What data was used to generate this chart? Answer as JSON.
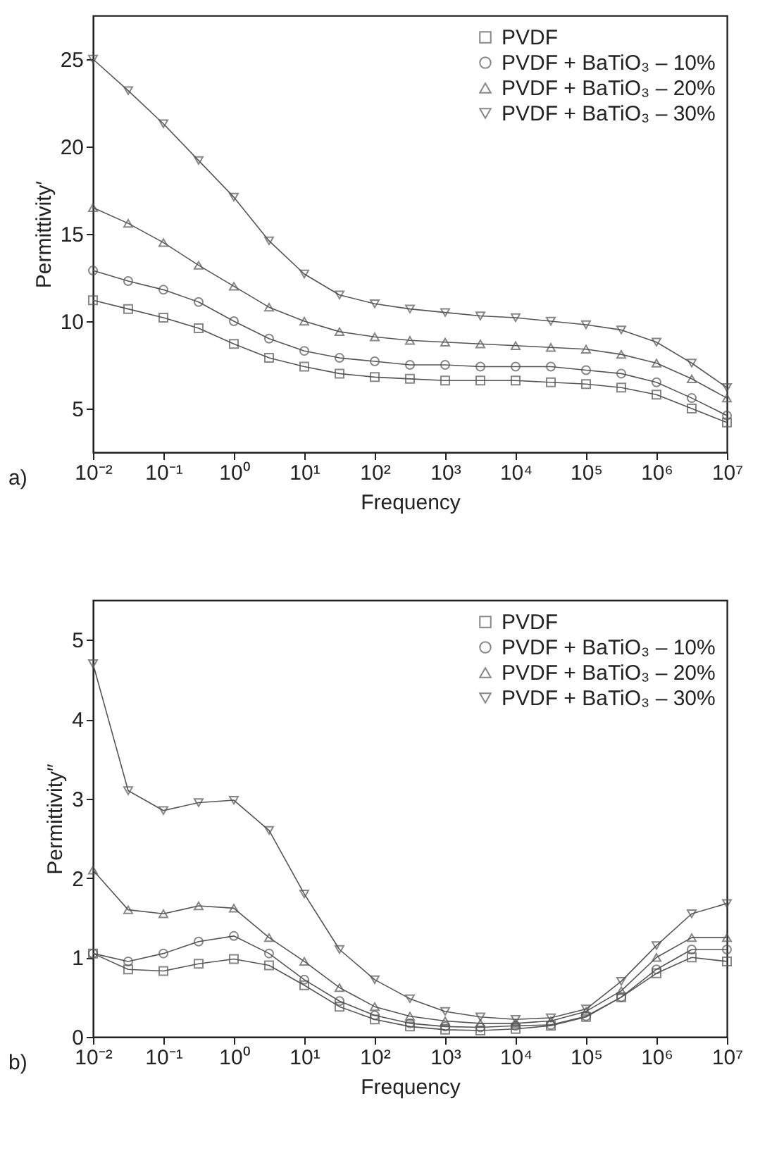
{
  "chart_data": [
    {
      "type": "line",
      "xlabel": "Frequency",
      "ylabel": "Permittivity′",
      "annotations": [
        "a)"
      ],
      "log": "x",
      "grid": false,
      "legend": "top right",
      "line_style": "solid",
      "x": [
        0.01,
        0.0316,
        0.1,
        0.316,
        1,
        3.16,
        10,
        31.6,
        100,
        316,
        1000,
        3162,
        10000,
        31623,
        100000,
        316228,
        1000000,
        3162278,
        10000000
      ],
      "xlim": [
        0.01,
        10000000
      ],
      "xticks": [
        {
          "value": 0.01,
          "label": "10⁻²"
        },
        {
          "value": 0.1,
          "label": "10⁻¹"
        },
        {
          "value": 1,
          "label": "10⁰"
        },
        {
          "value": 10,
          "label": "10¹"
        },
        {
          "value": 100,
          "label": "10²"
        },
        {
          "value": 1000,
          "label": "10³"
        },
        {
          "value": 10000,
          "label": "10⁴"
        },
        {
          "value": 100000,
          "label": "10⁵"
        },
        {
          "value": 1000000,
          "label": "10⁶"
        },
        {
          "value": 10000000,
          "label": "10⁷"
        }
      ],
      "ylim": [
        2.5,
        27.5
      ],
      "yticks": [
        5,
        10,
        15,
        20,
        25
      ],
      "series": [
        {
          "name": "PVDF",
          "color": "#555555",
          "marker": "square",
          "values": [
            11.2,
            10.7,
            10.2,
            9.6,
            8.7,
            7.9,
            7.4,
            7.0,
            6.8,
            6.7,
            6.6,
            6.6,
            6.6,
            6.5,
            6.4,
            6.2,
            5.8,
            5.0,
            4.2
          ]
        },
        {
          "name": "PVDF + BaTiO₃ – 10%",
          "color": "#555555",
          "marker": "circle",
          "values": [
            12.9,
            12.3,
            11.8,
            11.1,
            10.0,
            9.0,
            8.3,
            7.9,
            7.7,
            7.5,
            7.5,
            7.4,
            7.4,
            7.4,
            7.2,
            7.0,
            6.5,
            5.6,
            4.6
          ]
        },
        {
          "name": "PVDF + BaTiO₃ – 20%",
          "color": "#555555",
          "marker": "triangle",
          "values": [
            16.5,
            15.6,
            14.5,
            13.2,
            12.0,
            10.8,
            10.0,
            9.4,
            9.1,
            8.9,
            8.8,
            8.7,
            8.6,
            8.5,
            8.4,
            8.1,
            7.6,
            6.7,
            5.6
          ]
        },
        {
          "name": "PVDF + BaTiO₃ – 30%",
          "color": "#555555",
          "marker": "triangle-down",
          "values": [
            25.0,
            23.2,
            21.3,
            19.2,
            17.1,
            14.6,
            12.7,
            11.5,
            11.0,
            10.7,
            10.5,
            10.3,
            10.2,
            10.0,
            9.8,
            9.5,
            8.8,
            7.6,
            6.2
          ]
        }
      ]
    },
    {
      "type": "line",
      "xlabel": "Frequency",
      "ylabel": "Permittivity″",
      "annotations": [
        "b)"
      ],
      "log": "x",
      "grid": false,
      "legend": "top right",
      "line_style": "solid",
      "x": [
        0.01,
        0.0316,
        0.1,
        0.316,
        1,
        3.16,
        10,
        31.6,
        100,
        316,
        1000,
        3162,
        10000,
        31623,
        100000,
        316228,
        1000000,
        3162278,
        10000000
      ],
      "xlim": [
        0.01,
        10000000
      ],
      "xticks": [
        {
          "value": 0.01,
          "label": "10⁻²"
        },
        {
          "value": 0.1,
          "label": "10⁻¹"
        },
        {
          "value": 1,
          "label": "10⁰"
        },
        {
          "value": 10,
          "label": "10¹"
        },
        {
          "value": 100,
          "label": "10²"
        },
        {
          "value": 1000,
          "label": "10³"
        },
        {
          "value": 10000,
          "label": "10⁴"
        },
        {
          "value": 100000,
          "label": "10⁵"
        },
        {
          "value": 1000000,
          "label": "10⁶"
        },
        {
          "value": 10000000,
          "label": "10⁷"
        }
      ],
      "ylim": [
        0,
        5.5
      ],
      "yticks": [
        0,
        1,
        2,
        3,
        4,
        5
      ],
      "series": [
        {
          "name": "PVDF",
          "color": "#555555",
          "marker": "square",
          "values": [
            1.05,
            0.85,
            0.83,
            0.92,
            0.98,
            0.9,
            0.65,
            0.38,
            0.22,
            0.13,
            0.09,
            0.08,
            0.1,
            0.14,
            0.25,
            0.5,
            0.8,
            1.0,
            0.95
          ]
        },
        {
          "name": "PVDF + BaTiO₃ – 10%",
          "color": "#555555",
          "marker": "circle",
          "values": [
            1.05,
            0.95,
            1.05,
            1.2,
            1.27,
            1.05,
            0.72,
            0.45,
            0.27,
            0.17,
            0.13,
            0.12,
            0.14,
            0.15,
            0.26,
            0.5,
            0.85,
            1.1,
            1.1
          ]
        },
        {
          "name": "PVDF + BaTiO₃ – 20%",
          "color": "#555555",
          "marker": "triangle",
          "values": [
            2.1,
            1.6,
            1.55,
            1.65,
            1.62,
            1.25,
            0.95,
            0.62,
            0.38,
            0.26,
            0.2,
            0.17,
            0.17,
            0.2,
            0.32,
            0.58,
            1.0,
            1.25,
            1.25
          ]
        },
        {
          "name": "PVDF + BaTiO₃ – 30%",
          "color": "#555555",
          "marker": "triangle-down",
          "values": [
            4.7,
            3.1,
            2.85,
            2.95,
            2.98,
            2.6,
            1.8,
            1.1,
            0.72,
            0.48,
            0.32,
            0.25,
            0.22,
            0.24,
            0.35,
            0.7,
            1.15,
            1.55,
            1.68
          ]
        }
      ]
    }
  ]
}
